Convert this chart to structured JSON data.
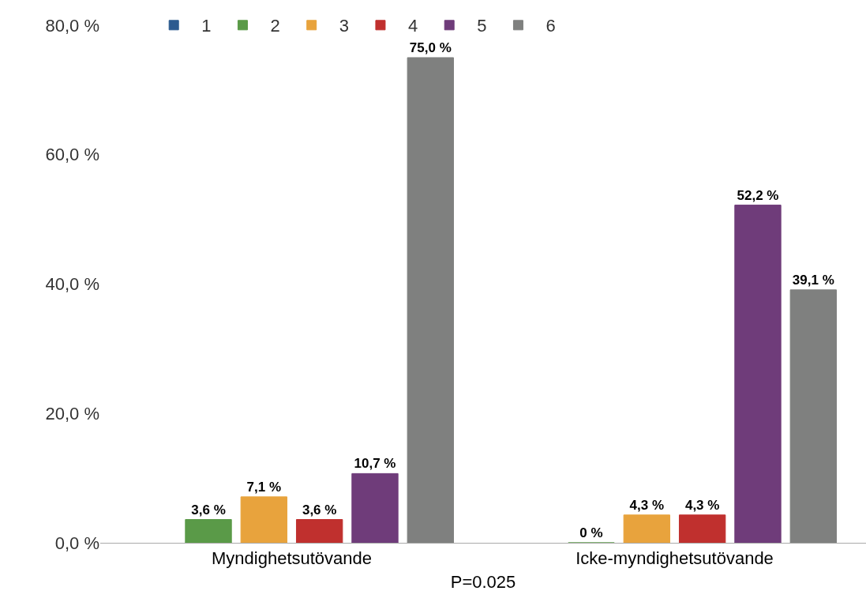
{
  "chart_data": {
    "type": "bar",
    "xlabel": "P=0.025",
    "categories": [
      "Myndighetsutövande",
      "Icke-myndighetsutövande"
    ],
    "ylim": [
      0,
      80
    ],
    "yticks": [
      {
        "value": 0,
        "label": "0,0 %"
      },
      {
        "value": 20,
        "label": "20,0 %"
      },
      {
        "value": 40,
        "label": "40,0 %"
      },
      {
        "value": 60,
        "label": "60,0 %"
      },
      {
        "value": 80,
        "label": "80,0 %"
      }
    ],
    "legend": "top",
    "series": [
      {
        "name": "1",
        "color": "#2c5a8f",
        "values": [
          null,
          null
        ],
        "value_labels": [
          null,
          null
        ]
      },
      {
        "name": "2",
        "color": "#5a9a48",
        "values": [
          3.6,
          0
        ],
        "value_labels": [
          "3,6 %",
          "0 %"
        ]
      },
      {
        "name": "3",
        "color": "#e8a33d",
        "values": [
          7.1,
          4.3
        ],
        "value_labels": [
          "7,1 %",
          "4,3 %"
        ]
      },
      {
        "name": "4",
        "color": "#c0302e",
        "values": [
          3.6,
          4.3
        ],
        "value_labels": [
          "3,6 %",
          "4,3 %"
        ]
      },
      {
        "name": "5",
        "color": "#6f3c7a",
        "values": [
          10.7,
          52.2
        ],
        "value_labels": [
          "10,7 %",
          "52,2 %"
        ]
      },
      {
        "name": "6",
        "color": "#7f807f",
        "values": [
          75.0,
          39.1
        ],
        "value_labels": [
          "75,0 %",
          "39,1 %"
        ]
      }
    ]
  }
}
